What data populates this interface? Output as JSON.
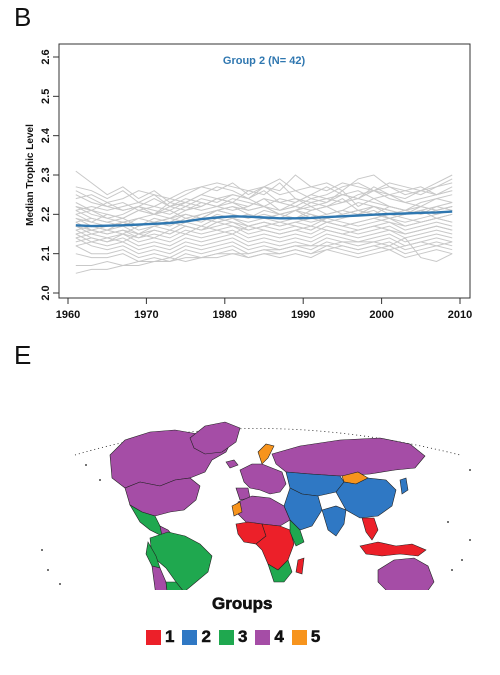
{
  "panel_b": {
    "letter": "B"
  },
  "panel_e": {
    "letter": "E"
  },
  "chart_data": {
    "type": "line",
    "title": "Group 2 (N= 42)",
    "title_color": "#2f77b0",
    "ylabel": "Median Trophic Level",
    "xlabel": "",
    "xlim": [
      1960,
      2010
    ],
    "ylim": [
      2.0,
      2.6
    ],
    "x_ticks": [
      1960,
      1970,
      1980,
      1990,
      2000,
      2010
    ],
    "y_ticks": [
      2.0,
      2.1,
      2.2,
      2.3,
      2.4,
      2.5,
      2.6
    ],
    "y_tick_labels": [
      "2.0",
      "2.1",
      "2.2",
      "2.3",
      "2.4",
      "2.5",
      "2.6"
    ],
    "grid": false,
    "legend": "none",
    "series_color": "#c8c8c8",
    "mean_color": "#2f77b0",
    "x": [
      1961,
      1963,
      1965,
      1967,
      1969,
      1971,
      1973,
      1975,
      1977,
      1979,
      1981,
      1983,
      1985,
      1987,
      1989,
      1991,
      1993,
      1995,
      1997,
      1999,
      2001,
      2003,
      2005,
      2007,
      2009
    ],
    "mean_series": [
      2.172,
      2.17,
      2.171,
      2.172,
      2.174,
      2.176,
      2.178,
      2.182,
      2.188,
      2.192,
      2.195,
      2.194,
      2.192,
      2.19,
      2.19,
      2.191,
      2.193,
      2.195,
      2.197,
      2.199,
      2.201,
      2.202,
      2.204,
      2.205,
      2.207
    ],
    "series": [
      {
        "values": [
          2.31,
          2.28,
          2.25,
          2.27,
          2.24,
          2.26,
          2.23,
          2.25,
          2.27,
          2.26,
          2.28,
          2.25,
          2.27,
          2.26,
          2.3,
          2.27,
          2.28,
          2.26,
          2.29,
          2.3,
          2.27,
          2.26,
          2.25,
          2.27,
          2.29
        ]
      },
      {
        "values": [
          2.27,
          2.26,
          2.24,
          2.26,
          2.23,
          2.25,
          2.22,
          2.24,
          2.23,
          2.22,
          2.24,
          2.23,
          2.22,
          2.24,
          2.23,
          2.25,
          2.24,
          2.23,
          2.25,
          2.26,
          2.24,
          2.23,
          2.22,
          2.24,
          2.25
        ]
      },
      {
        "values": [
          2.25,
          2.23,
          2.22,
          2.21,
          2.22,
          2.2,
          2.23,
          2.22,
          2.21,
          2.22,
          2.23,
          2.22,
          2.24,
          2.21,
          2.22,
          2.24,
          2.23,
          2.26,
          2.22,
          2.24,
          2.22,
          2.21,
          2.23,
          2.24,
          2.23
        ]
      },
      {
        "values": [
          2.23,
          2.21,
          2.2,
          2.19,
          2.21,
          2.2,
          2.21,
          2.19,
          2.2,
          2.21,
          2.22,
          2.21,
          2.22,
          2.2,
          2.21,
          2.22,
          2.2,
          2.21,
          2.23,
          2.22,
          2.21,
          2.2,
          2.22,
          2.21,
          2.22
        ]
      },
      {
        "values": [
          2.22,
          2.2,
          2.19,
          2.18,
          2.19,
          2.18,
          2.19,
          2.2,
          2.19,
          2.21,
          2.2,
          2.19,
          2.2,
          2.19,
          2.21,
          2.2,
          2.19,
          2.2,
          2.21,
          2.2,
          2.19,
          2.2,
          2.21,
          2.19,
          2.2
        ]
      },
      {
        "values": [
          2.21,
          2.19,
          2.18,
          2.19,
          2.17,
          2.18,
          2.17,
          2.19,
          2.18,
          2.2,
          2.19,
          2.18,
          2.19,
          2.18,
          2.19,
          2.2,
          2.18,
          2.19,
          2.2,
          2.21,
          2.19,
          2.18,
          2.19,
          2.2,
          2.21
        ]
      },
      {
        "values": [
          2.2,
          2.18,
          2.17,
          2.18,
          2.16,
          2.17,
          2.18,
          2.17,
          2.16,
          2.18,
          2.19,
          2.17,
          2.18,
          2.17,
          2.18,
          2.17,
          2.19,
          2.18,
          2.17,
          2.18,
          2.19,
          2.17,
          2.18,
          2.19,
          2.18
        ]
      },
      {
        "values": [
          2.19,
          2.17,
          2.16,
          2.17,
          2.15,
          2.16,
          2.15,
          2.17,
          2.16,
          2.17,
          2.18,
          2.16,
          2.17,
          2.16,
          2.17,
          2.16,
          2.18,
          2.17,
          2.16,
          2.17,
          2.18,
          2.16,
          2.17,
          2.18,
          2.17
        ]
      },
      {
        "values": [
          2.18,
          2.16,
          2.15,
          2.16,
          2.14,
          2.15,
          2.14,
          2.16,
          2.15,
          2.16,
          2.17,
          2.15,
          2.16,
          2.15,
          2.16,
          2.15,
          2.17,
          2.16,
          2.15,
          2.16,
          2.17,
          2.15,
          2.16,
          2.17,
          2.16
        ]
      },
      {
        "values": [
          2.17,
          2.15,
          2.14,
          2.15,
          2.13,
          2.14,
          2.13,
          2.15,
          2.14,
          2.15,
          2.16,
          2.14,
          2.15,
          2.14,
          2.15,
          2.14,
          2.16,
          2.15,
          2.14,
          2.15,
          2.16,
          2.14,
          2.15,
          2.16,
          2.15
        ]
      },
      {
        "values": [
          2.16,
          2.14,
          2.13,
          2.14,
          2.12,
          2.13,
          2.12,
          2.14,
          2.13,
          2.14,
          2.15,
          2.13,
          2.14,
          2.13,
          2.14,
          2.13,
          2.15,
          2.14,
          2.13,
          2.14,
          2.15,
          2.13,
          2.14,
          2.15,
          2.14
        ]
      },
      {
        "values": [
          2.15,
          2.13,
          2.12,
          2.13,
          2.11,
          2.12,
          2.11,
          2.13,
          2.12,
          2.13,
          2.14,
          2.12,
          2.13,
          2.12,
          2.13,
          2.12,
          2.14,
          2.13,
          2.12,
          2.13,
          2.14,
          2.12,
          2.13,
          2.14,
          2.13
        ]
      },
      {
        "values": [
          2.14,
          2.12,
          2.11,
          2.12,
          2.1,
          2.11,
          2.1,
          2.12,
          2.11,
          2.12,
          2.13,
          2.11,
          2.12,
          2.11,
          2.12,
          2.11,
          2.13,
          2.12,
          2.11,
          2.12,
          2.13,
          2.11,
          2.12,
          2.13,
          2.12
        ]
      },
      {
        "values": [
          2.12,
          2.1,
          2.1,
          2.11,
          2.09,
          2.1,
          2.09,
          2.11,
          2.1,
          2.11,
          2.12,
          2.1,
          2.11,
          2.1,
          2.11,
          2.1,
          2.12,
          2.11,
          2.1,
          2.11,
          2.12,
          2.1,
          2.11,
          2.12,
          2.11
        ]
      },
      {
        "values": [
          2.1,
          2.09,
          2.09,
          2.1,
          2.08,
          2.09,
          2.08,
          2.1,
          2.09,
          2.1,
          2.11,
          2.09,
          2.1,
          2.09,
          2.1,
          2.09,
          2.11,
          2.1,
          2.09,
          2.1,
          2.11,
          2.09,
          2.1,
          2.11,
          2.1
        ]
      },
      {
        "values": [
          2.07,
          2.07,
          2.08,
          2.07,
          2.08,
          2.08,
          2.09,
          2.08,
          2.09,
          2.09,
          2.1,
          2.09,
          2.1,
          2.1,
          2.11,
          2.1,
          2.11,
          2.12,
          2.11,
          2.12,
          2.11,
          2.12,
          2.13,
          2.12,
          2.13
        ]
      },
      {
        "values": [
          2.05,
          2.06,
          2.06,
          2.07,
          2.07,
          2.08,
          2.08,
          2.09,
          2.09,
          2.1,
          2.1,
          2.1,
          2.11,
          2.11,
          2.12,
          2.12,
          2.12,
          2.13,
          2.13,
          2.13,
          2.12,
          2.14,
          2.09,
          2.08,
          2.1
        ]
      },
      {
        "values": [
          2.22,
          2.21,
          2.23,
          2.21,
          2.22,
          2.24,
          2.22,
          2.23,
          2.25,
          2.24,
          2.23,
          2.26,
          2.25,
          2.28,
          2.24,
          2.22,
          2.23,
          2.25,
          2.24,
          2.27,
          2.25,
          2.23,
          2.24,
          2.25,
          2.26
        ]
      },
      {
        "values": [
          2.14,
          2.15,
          2.16,
          2.15,
          2.17,
          2.18,
          2.19,
          2.21,
          2.22,
          2.24,
          2.23,
          2.21,
          2.22,
          2.2,
          2.21,
          2.23,
          2.22,
          2.24,
          2.21,
          2.22,
          2.2,
          2.21,
          2.22,
          2.21,
          2.22
        ]
      },
      {
        "values": [
          2.19,
          2.18,
          2.2,
          2.19,
          2.21,
          2.2,
          2.22,
          2.21,
          2.23,
          2.22,
          2.21,
          2.22,
          2.24,
          2.23,
          2.22,
          2.21,
          2.22,
          2.23,
          2.24,
          2.23,
          2.22,
          2.21,
          2.2,
          2.22,
          2.23
        ]
      },
      {
        "values": [
          2.13,
          2.14,
          2.13,
          2.15,
          2.14,
          2.16,
          2.15,
          2.17,
          2.16,
          2.18,
          2.17,
          2.16,
          2.17,
          2.18,
          2.17,
          2.16,
          2.18,
          2.17,
          2.18,
          2.19,
          2.18,
          2.17,
          2.18,
          2.19,
          2.18
        ]
      },
      {
        "values": [
          2.26,
          2.24,
          2.22,
          2.23,
          2.21,
          2.22,
          2.24,
          2.23,
          2.25,
          2.27,
          2.26,
          2.24,
          2.27,
          2.29,
          2.26,
          2.24,
          2.25,
          2.27,
          2.28,
          2.26,
          2.27,
          2.25,
          2.26,
          2.28,
          2.3
        ]
      },
      {
        "values": [
          2.16,
          2.17,
          2.16,
          2.18,
          2.17,
          2.19,
          2.18,
          2.2,
          2.19,
          2.21,
          2.22,
          2.2,
          2.19,
          2.2,
          2.21,
          2.19,
          2.2,
          2.21,
          2.2,
          2.22,
          2.21,
          2.2,
          2.21,
          2.22,
          2.21
        ]
      },
      {
        "values": [
          2.2,
          2.21,
          2.19,
          2.2,
          2.22,
          2.21,
          2.2,
          2.22,
          2.24,
          2.23,
          2.25,
          2.24,
          2.22,
          2.21,
          2.23,
          2.25,
          2.27,
          2.25,
          2.24,
          2.26,
          2.25,
          2.24,
          2.26,
          2.25,
          2.27
        ]
      },
      {
        "values": [
          2.12,
          2.13,
          2.14,
          2.13,
          2.15,
          2.14,
          2.16,
          2.15,
          2.17,
          2.16,
          2.15,
          2.17,
          2.16,
          2.15,
          2.16,
          2.17,
          2.16,
          2.15,
          2.16,
          2.17,
          2.16,
          2.15,
          2.16,
          2.17,
          2.16
        ]
      },
      {
        "values": [
          2.18,
          2.19,
          2.18,
          2.17,
          2.19,
          2.2,
          2.19,
          2.18,
          2.2,
          2.21,
          2.2,
          2.19,
          2.21,
          2.2,
          2.19,
          2.21,
          2.22,
          2.2,
          2.21,
          2.2,
          2.22,
          2.21,
          2.2,
          2.21,
          2.22
        ]
      },
      {
        "values": [
          2.24,
          2.25,
          2.23,
          2.24,
          2.26,
          2.25,
          2.24,
          2.26,
          2.27,
          2.28,
          2.27,
          2.26,
          2.27,
          2.25,
          2.26,
          2.27,
          2.26,
          2.28,
          2.27,
          2.26,
          2.28,
          2.27,
          2.26,
          2.27,
          2.28
        ]
      },
      {
        "values": [
          2.15,
          2.16,
          2.15,
          2.16,
          2.15,
          2.17,
          2.16,
          2.18,
          2.17,
          2.19,
          2.18,
          2.17,
          2.18,
          2.17,
          2.18,
          2.19,
          2.18,
          2.17,
          2.18,
          2.19,
          2.2,
          2.19,
          2.18,
          2.19,
          2.2
        ]
      },
      {
        "values": [
          2.21,
          2.22,
          2.21,
          2.22,
          2.23,
          2.22,
          2.21,
          2.23,
          2.22,
          2.24,
          2.25,
          2.24,
          2.26,
          2.23,
          2.24,
          2.23,
          2.24,
          2.25,
          2.26,
          2.24,
          2.25,
          2.26,
          2.27,
          2.25,
          2.26
        ]
      },
      {
        "values": [
          2.17,
          2.16,
          2.17,
          2.18,
          2.17,
          2.18,
          2.19,
          2.18,
          2.19,
          2.18,
          2.19,
          2.2,
          2.19,
          2.2,
          2.19,
          2.18,
          2.19,
          2.2,
          2.21,
          2.2,
          2.19,
          2.2,
          2.21,
          2.2,
          2.21
        ]
      }
    ]
  },
  "map": {
    "title": "Groups",
    "groups": [
      {
        "label": "1",
        "color": "#ec2029"
      },
      {
        "label": "2",
        "color": "#2f78c4"
      },
      {
        "label": "3",
        "color": "#1fa84f"
      },
      {
        "label": "4",
        "color": "#a54da6"
      },
      {
        "label": "5",
        "color": "#f7941d"
      }
    ]
  }
}
